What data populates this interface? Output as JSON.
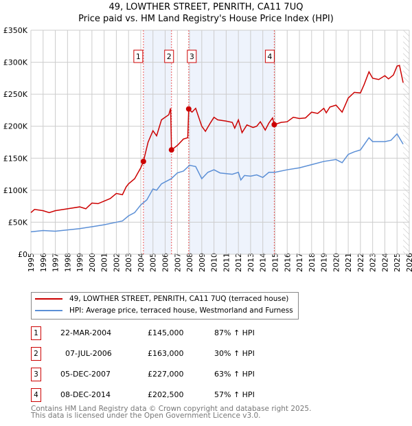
{
  "chart_data": {
    "type": "line",
    "title": "49, LOWTHER STREET, PENRITH, CA11 7UQ",
    "subtitle": "Price paid vs. HM Land Registry's House Price Index (HPI)",
    "xlim": [
      1995,
      2026
    ],
    "ylim": [
      0,
      350000
    ],
    "x_ticks": [
      "1995",
      "1996",
      "1997",
      "1998",
      "1999",
      "2000",
      "2001",
      "2002",
      "2003",
      "2004",
      "2005",
      "2006",
      "2007",
      "2008",
      "2009",
      "2010",
      "2011",
      "2012",
      "2013",
      "2014",
      "2015",
      "2016",
      "2017",
      "2018",
      "2019",
      "2020",
      "2021",
      "2022",
      "2023",
      "2024",
      "2025",
      "2026"
    ],
    "y_ticks": [
      {
        "v": 0,
        "label": "£0"
      },
      {
        "v": 50000,
        "label": "£50K"
      },
      {
        "v": 100000,
        "label": "£100K"
      },
      {
        "v": 150000,
        "label": "£150K"
      },
      {
        "v": 200000,
        "label": "£200K"
      },
      {
        "v": 250000,
        "label": "£250K"
      },
      {
        "v": 300000,
        "label": "£300K"
      },
      {
        "v": 350000,
        "label": "£350K"
      }
    ],
    "grid": true,
    "series": [
      {
        "name": "49, LOWTHER STREET, PENRITH, CA11 7UQ (terraced house)",
        "color": "#cc0000",
        "points": [
          [
            1995,
            65
          ],
          [
            1995.3,
            70
          ],
          [
            1996,
            68
          ],
          [
            1996.5,
            65
          ],
          [
            1997,
            68
          ],
          [
            1998,
            71
          ],
          [
            1999,
            74
          ],
          [
            1999.5,
            71
          ],
          [
            2000,
            80
          ],
          [
            2000.5,
            79
          ],
          [
            2001,
            83
          ],
          [
            2001.5,
            87
          ],
          [
            2002,
            95
          ],
          [
            2002.5,
            93
          ],
          [
            2002.8,
            105
          ],
          [
            2003,
            110
          ],
          [
            2003.5,
            118
          ],
          [
            2004,
            135
          ],
          [
            2004.22,
            145
          ],
          [
            2004.6,
            175
          ],
          [
            2005,
            193
          ],
          [
            2005.3,
            185
          ],
          [
            2005.7,
            210
          ],
          [
            2006.3,
            218
          ],
          [
            2006.45,
            228
          ],
          [
            2006.52,
            163
          ],
          [
            2007,
            170
          ],
          [
            2007.5,
            180
          ],
          [
            2007.85,
            182
          ],
          [
            2007.93,
            227
          ],
          [
            2008.2,
            222
          ],
          [
            2008.5,
            228
          ],
          [
            2009,
            200
          ],
          [
            2009.3,
            192
          ],
          [
            2009.7,
            205
          ],
          [
            2010,
            214
          ],
          [
            2010.3,
            210
          ],
          [
            2011,
            208
          ],
          [
            2011.5,
            206
          ],
          [
            2011.7,
            197
          ],
          [
            2012,
            210
          ],
          [
            2012.3,
            190
          ],
          [
            2012.7,
            202
          ],
          [
            2013.2,
            198
          ],
          [
            2013.5,
            200
          ],
          [
            2013.8,
            207
          ],
          [
            2014.2,
            194
          ],
          [
            2014.5,
            205
          ],
          [
            2014.8,
            213
          ],
          [
            2014.94,
            202.5
          ],
          [
            2015.5,
            206
          ],
          [
            2016,
            207
          ],
          [
            2016.5,
            214
          ],
          [
            2017,
            212
          ],
          [
            2017.5,
            213
          ],
          [
            2018,
            222
          ],
          [
            2018.5,
            220
          ],
          [
            2019,
            228
          ],
          [
            2019.2,
            221
          ],
          [
            2019.5,
            230
          ],
          [
            2020,
            233
          ],
          [
            2020.5,
            222
          ],
          [
            2020.8,
            235
          ],
          [
            2021,
            244
          ],
          [
            2021.5,
            253
          ],
          [
            2022,
            252
          ],
          [
            2022.3,
            265
          ],
          [
            2022.7,
            285
          ],
          [
            2023,
            275
          ],
          [
            2023.5,
            273
          ],
          [
            2024,
            279
          ],
          [
            2024.3,
            274
          ],
          [
            2024.7,
            280
          ],
          [
            2025,
            294
          ],
          [
            2025.2,
            295
          ],
          [
            2025.5,
            268
          ]
        ]
      },
      {
        "name": "HPI: Average price, terraced house, Westmorland and Furness",
        "color": "#5b8fd6",
        "points": [
          [
            1995,
            35
          ],
          [
            1996,
            37
          ],
          [
            1997,
            36
          ],
          [
            1998,
            38
          ],
          [
            1999,
            40
          ],
          [
            2000,
            43
          ],
          [
            2001,
            46
          ],
          [
            2002,
            50
          ],
          [
            2002.5,
            52
          ],
          [
            2003,
            60
          ],
          [
            2003.5,
            65
          ],
          [
            2004,
            77
          ],
          [
            2004.5,
            85
          ],
          [
            2005,
            102
          ],
          [
            2005.3,
            100
          ],
          [
            2005.7,
            110
          ],
          [
            2006.5,
            118
          ],
          [
            2007,
            127
          ],
          [
            2007.5,
            130
          ],
          [
            2008,
            139
          ],
          [
            2008.5,
            137
          ],
          [
            2009,
            118
          ],
          [
            2009.5,
            128
          ],
          [
            2010,
            132
          ],
          [
            2010.5,
            127
          ],
          [
            2011.5,
            125
          ],
          [
            2012,
            128
          ],
          [
            2012.2,
            116
          ],
          [
            2012.5,
            123
          ],
          [
            2013,
            122
          ],
          [
            2013.5,
            124
          ],
          [
            2014,
            120
          ],
          [
            2014.5,
            128
          ],
          [
            2015,
            128
          ],
          [
            2016,
            132
          ],
          [
            2017,
            135
          ],
          [
            2018,
            140
          ],
          [
            2019,
            145
          ],
          [
            2020,
            148
          ],
          [
            2020.5,
            143
          ],
          [
            2021,
            156
          ],
          [
            2021.5,
            160
          ],
          [
            2022,
            163
          ],
          [
            2022.7,
            182
          ],
          [
            2023,
            176
          ],
          [
            2024,
            176
          ],
          [
            2024.5,
            178
          ],
          [
            2025,
            188
          ],
          [
            2025.5,
            172
          ]
        ]
      }
    ],
    "y_units_multiplier": 1000,
    "sales": [
      {
        "id": "1",
        "x": 2004.22,
        "price": 145000,
        "date": "22-MAR-2004",
        "price_label": "£145,000",
        "hpi": "87% ↑ HPI"
      },
      {
        "id": "2",
        "x": 2006.52,
        "price": 163000,
        "date": "07-JUL-2006",
        "price_label": "£163,000",
        "hpi": "30% ↑ HPI"
      },
      {
        "id": "3",
        "x": 2007.93,
        "price": 227000,
        "date": "05-DEC-2007",
        "price_label": "£227,000",
        "hpi": "63% ↑ HPI"
      },
      {
        "id": "4",
        "x": 2014.94,
        "price": 202500,
        "date": "08-DEC-2014",
        "price_label": "£202,500",
        "hpi": "57% ↑ HPI"
      }
    ],
    "shaded_ranges": [
      [
        2004.22,
        2006.52
      ],
      [
        2007.93,
        2014.94
      ]
    ],
    "forecast_from": 2025.5,
    "legend_placement": "below"
  },
  "footer": [
    "Contains HM Land Registry data © Crown copyright and database right 2025.",
    "This data is licensed under the Open Government Licence v3.0."
  ]
}
